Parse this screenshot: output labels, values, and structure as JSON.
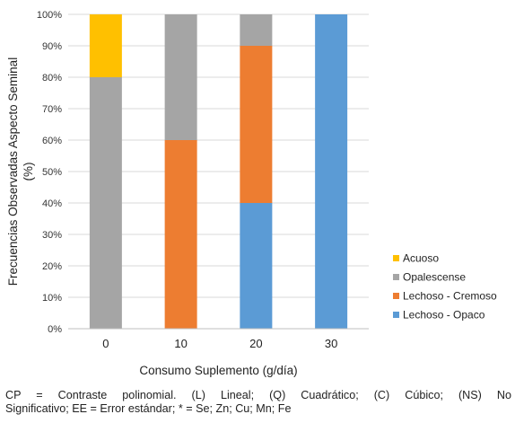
{
  "chart_data": {
    "type": "bar",
    "stacked": true,
    "categories": [
      "0",
      "10",
      "20",
      "30"
    ],
    "xlabel": "Consumo Suplemento (g/día)",
    "ylabel_lines": [
      "Frecuencias Observadas Aspecto Seminal",
      "(%)"
    ],
    "ylim": [
      0,
      100
    ],
    "yticks": [
      "0%",
      "10%",
      "20%",
      "30%",
      "40%",
      "50%",
      "60%",
      "70%",
      "80%",
      "90%",
      "100%"
    ],
    "grid": true,
    "legend_position": "right",
    "series": [
      {
        "name": "Lechoso - Opaco",
        "color": "#5B9BD5",
        "values": [
          0,
          0,
          40,
          100
        ]
      },
      {
        "name": "Lechoso - Cremoso",
        "color": "#ED7D31",
        "values": [
          0,
          60,
          50,
          0
        ]
      },
      {
        "name": "Opalescense",
        "color": "#A5A5A5",
        "values": [
          80,
          40,
          10,
          0
        ]
      },
      {
        "name": "Acuoso",
        "color": "#FFC000",
        "values": [
          20,
          0,
          0,
          0
        ]
      }
    ]
  },
  "caption": {
    "line1": "CP = Contraste polinomial. (L) Lineal; (Q) Cuadrático; (C) Cúbico; (NS) No",
    "line2": "Significativo; EE = Error estándar; * = Se; Zn; Cu; Mn; Fe"
  }
}
